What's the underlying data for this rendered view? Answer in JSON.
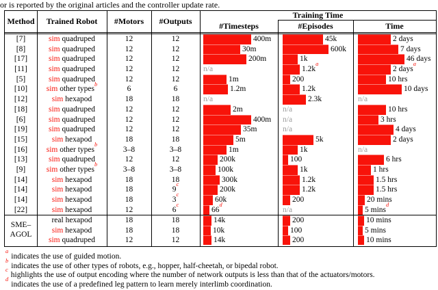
{
  "intro_text": "or is reported by the original articles and the controller update rate.",
  "colors": {
    "red": "#f8130a",
    "na_gray": "#9c9c9c",
    "bar_red": "#f8130a"
  },
  "header": {
    "method": "Method",
    "robot": "Trained Robot",
    "motors": "#Motors",
    "outputs": "#Outputs",
    "training_time": "Training Time",
    "timesteps": "#Timesteps",
    "episodes": "#Episodes",
    "time": "Time"
  },
  "group_label": {
    "line1": "SME–",
    "line2": "AGOL"
  },
  "na_label": "n/a",
  "rows": [
    {
      "method": "[7]",
      "robot_prefix": "sim",
      "prefix_red": true,
      "robot_rest": " quadruped",
      "robot_sup": null,
      "motors": "12",
      "outputs": "12",
      "outputs_sup": null,
      "timesteps": {
        "label": "400m",
        "sup": null,
        "bar": 70
      },
      "episodes": {
        "label": "45k",
        "sup": null,
        "bar": 59
      },
      "time": {
        "label": "2 days",
        "sup": null,
        "bar": 48
      },
      "group": "main"
    },
    {
      "method": "[8]",
      "robot_prefix": "sim",
      "prefix_red": true,
      "robot_rest": " quadruped",
      "robot_sup": null,
      "motors": "12",
      "outputs": "12",
      "outputs_sup": null,
      "timesteps": {
        "label": "30m",
        "sup": null,
        "bar": 54
      },
      "episodes": {
        "label": "600k",
        "sup": null,
        "bar": 67
      },
      "time": {
        "label": "7 days",
        "sup": null,
        "bar": 59
      },
      "group": "main"
    },
    {
      "method": "[17]",
      "robot_prefix": "sim",
      "prefix_red": true,
      "robot_rest": " quadruped",
      "robot_sup": null,
      "motors": "12",
      "outputs": "12",
      "outputs_sup": null,
      "timesteps": {
        "label": "200m",
        "sup": null,
        "bar": 63
      },
      "episodes": {
        "label": "1k",
        "sup": null,
        "bar": 22
      },
      "time": {
        "label": "46 days",
        "sup": null,
        "bar": 68
      },
      "group": "main"
    },
    {
      "method": "[11]",
      "robot_prefix": "sim",
      "prefix_red": true,
      "robot_rest": " quadruped",
      "robot_sup": null,
      "motors": "12",
      "outputs": "12",
      "outputs_sup": null,
      "timesteps": {
        "label": "n/a",
        "sup": null,
        "bar": 0
      },
      "episodes": {
        "label": "1.2k",
        "sup": "a",
        "bar": 25
      },
      "time": {
        "label": "2 days",
        "sup": "a",
        "bar": 48
      },
      "group": "main"
    },
    {
      "method": "[5]",
      "robot_prefix": "sim",
      "prefix_red": true,
      "robot_rest": " quadruped",
      "robot_sup": null,
      "motors": "12",
      "outputs": "12",
      "outputs_sup": null,
      "timesteps": {
        "label": "1m",
        "sup": null,
        "bar": 34
      },
      "episodes": {
        "label": "200",
        "sup": null,
        "bar": 11
      },
      "time": {
        "label": "10 hrs",
        "sup": null,
        "bar": 41
      },
      "group": "main"
    },
    {
      "method": "[10]",
      "robot_prefix": "sim",
      "prefix_red": true,
      "robot_rest": " other types",
      "robot_sup": "b",
      "motors": "6",
      "outputs": "6",
      "outputs_sup": null,
      "timesteps": {
        "label": "1.2m",
        "sup": null,
        "bar": 36
      },
      "episodes": {
        "label": "1.2k",
        "sup": null,
        "bar": 25
      },
      "time": {
        "label": "10 days",
        "sup": null,
        "bar": 64
      },
      "group": "main"
    },
    {
      "method": "[12]",
      "robot_prefix": "sim",
      "prefix_red": true,
      "robot_rest": " hexapod",
      "robot_sup": null,
      "motors": "18",
      "outputs": "18",
      "outputs_sup": null,
      "timesteps": {
        "label": "n/a",
        "sup": null,
        "bar": 0
      },
      "episodes": {
        "label": "2.3k",
        "sup": null,
        "bar": 34
      },
      "time": {
        "label": "n/a",
        "sup": null,
        "bar": 0
      },
      "group": "main"
    },
    {
      "method": "[18]",
      "robot_prefix": "sim",
      "prefix_red": true,
      "robot_rest": " quadruped",
      "robot_sup": null,
      "motors": "12",
      "outputs": "12",
      "outputs_sup": null,
      "timesteps": {
        "label": "2m",
        "sup": null,
        "bar": 40
      },
      "episodes": {
        "label": "n/a",
        "sup": null,
        "bar": 0
      },
      "time": {
        "label": "10 hrs",
        "sup": null,
        "bar": 41
      },
      "group": "main"
    },
    {
      "method": "[6]",
      "robot_prefix": "sim",
      "prefix_red": true,
      "robot_rest": " quadruped",
      "robot_sup": null,
      "motors": "12",
      "outputs": "12",
      "outputs_sup": null,
      "timesteps": {
        "label": "400m",
        "sup": null,
        "bar": 70
      },
      "episodes": {
        "label": "n/a",
        "sup": null,
        "bar": 0
      },
      "time": {
        "label": "3 hrs",
        "sup": null,
        "bar": 30
      },
      "group": "main"
    },
    {
      "method": "[19]",
      "robot_prefix": "sim",
      "prefix_red": true,
      "robot_rest": " quadruped",
      "robot_sup": null,
      "motors": "12",
      "outputs": "12",
      "outputs_sup": null,
      "timesteps": {
        "label": "35m",
        "sup": null,
        "bar": 55
      },
      "episodes": {
        "label": "n/a",
        "sup": null,
        "bar": 0
      },
      "time": {
        "label": "4 days",
        "sup": null,
        "bar": 52
      },
      "group": "main"
    },
    {
      "method": "[15]",
      "robot_prefix": "sim",
      "prefix_red": true,
      "robot_rest": " hexapod",
      "robot_sup": null,
      "motors": "18",
      "outputs": "18",
      "outputs_sup": null,
      "timesteps": {
        "label": "5m",
        "sup": null,
        "bar": 44
      },
      "episodes": {
        "label": "5k",
        "sup": null,
        "bar": 45
      },
      "time": {
        "label": "2 days",
        "sup": null,
        "bar": 48
      },
      "group": "main"
    },
    {
      "method": "[16]",
      "robot_prefix": "sim",
      "prefix_red": true,
      "robot_rest": " other types",
      "robot_sup": "b",
      "motors": "3–8",
      "outputs": "3–8",
      "outputs_sup": null,
      "timesteps": {
        "label": "1m",
        "sup": null,
        "bar": 34
      },
      "episodes": {
        "label": "1k",
        "sup": null,
        "bar": 22
      },
      "time": {
        "label": "n/a",
        "sup": null,
        "bar": 0
      },
      "group": "main"
    },
    {
      "method": "[13]",
      "robot_prefix": "sim",
      "prefix_red": true,
      "robot_rest": " quadruped",
      "robot_sup": null,
      "motors": "12",
      "outputs": "12",
      "outputs_sup": null,
      "timesteps": {
        "label": "200k",
        "sup": null,
        "bar": 21
      },
      "episodes": {
        "label": "100",
        "sup": null,
        "bar": 8
      },
      "time": {
        "label": "6 hrs",
        "sup": null,
        "bar": 38
      },
      "group": "main"
    },
    {
      "method": "[9]",
      "robot_prefix": "sim",
      "prefix_red": true,
      "robot_rest": " other types",
      "robot_sup": "b",
      "motors": "3–8",
      "outputs": "3–8",
      "outputs_sup": null,
      "timesteps": {
        "label": "100k",
        "sup": null,
        "bar": 18
      },
      "episodes": {
        "label": "1k",
        "sup": null,
        "bar": 22
      },
      "time": {
        "label": "1 hrs",
        "sup": null,
        "bar": 19
      },
      "group": "main"
    },
    {
      "method": "[14]",
      "robot_prefix": "sim",
      "prefix_red": true,
      "robot_rest": " hexapod",
      "robot_sup": null,
      "motors": "18",
      "outputs": "18",
      "outputs_sup": null,
      "timesteps": {
        "label": "300k",
        "sup": null,
        "bar": 24
      },
      "episodes": {
        "label": "1.2k",
        "sup": null,
        "bar": 25
      },
      "time": {
        "label": "1.5 hrs",
        "sup": null,
        "bar": 23
      },
      "group": "main"
    },
    {
      "method": "[14]",
      "robot_prefix": "sim",
      "prefix_red": true,
      "robot_rest": " hexapod",
      "robot_sup": null,
      "motors": "18",
      "outputs": "9",
      "outputs_sup": "c",
      "timesteps": {
        "label": "200k",
        "sup": null,
        "bar": 21
      },
      "episodes": {
        "label": "1.2k",
        "sup": null,
        "bar": 25
      },
      "time": {
        "label": "1.5 hrs",
        "sup": null,
        "bar": 23
      },
      "group": "main"
    },
    {
      "method": "[14]",
      "robot_prefix": "sim",
      "prefix_red": true,
      "robot_rest": " hexapod",
      "robot_sup": null,
      "motors": "18",
      "outputs": "3",
      "outputs_sup": "c",
      "timesteps": {
        "label": "60k",
        "sup": null,
        "bar": 14
      },
      "episodes": {
        "label": "200",
        "sup": null,
        "bar": 11
      },
      "time": {
        "label": "20 mins",
        "sup": null,
        "bar": 10
      },
      "group": "main"
    },
    {
      "method": "[22]",
      "robot_prefix": "sim",
      "prefix_red": true,
      "robot_rest": " hexapod",
      "robot_sup": null,
      "motors": "12",
      "outputs": "6",
      "outputs_sup": "c",
      "timesteps": {
        "label": "66",
        "sup": "d",
        "bar": 9
      },
      "episodes": {
        "label": "n/a",
        "sup": null,
        "bar": 0
      },
      "time": {
        "label": "5 mins",
        "sup": "d",
        "bar": 7
      },
      "group": "main"
    },
    {
      "method": "",
      "robot_prefix": "real",
      "prefix_red": false,
      "robot_rest": " hexapod",
      "robot_sup": null,
      "motors": "18",
      "outputs": "18",
      "outputs_sup": null,
      "timesteps": {
        "label": "14k",
        "sup": null,
        "bar": 12
      },
      "episodes": {
        "label": "200",
        "sup": null,
        "bar": 11
      },
      "time": {
        "label": "10 mins",
        "sup": null,
        "bar": 9
      },
      "group": "sme"
    },
    {
      "method": "",
      "robot_prefix": "sim",
      "prefix_red": true,
      "robot_rest": " hexapod",
      "robot_sup": null,
      "motors": "18",
      "outputs": "18",
      "outputs_sup": null,
      "timesteps": {
        "label": "10k",
        "sup": null,
        "bar": 11
      },
      "episodes": {
        "label": "100",
        "sup": null,
        "bar": 8
      },
      "time": {
        "label": "5 mins",
        "sup": null,
        "bar": 7
      },
      "group": "sme"
    },
    {
      "method": "",
      "robot_prefix": "sim",
      "prefix_red": true,
      "robot_rest": " quadruped",
      "robot_sup": null,
      "motors": "12",
      "outputs": "12",
      "outputs_sup": null,
      "timesteps": {
        "label": "14k",
        "sup": null,
        "bar": 12
      },
      "episodes": {
        "label": "200",
        "sup": null,
        "bar": 11
      },
      "time": {
        "label": "10 mins",
        "sup": null,
        "bar": 9
      },
      "group": "sme"
    }
  ],
  "footnotes": [
    {
      "marker": "a",
      "text": "indicates the use of guided motion."
    },
    {
      "marker": "b",
      "text": "indicates the use of other types of robots, e.g., hopper, half-cheetah, or bipedal robot."
    },
    {
      "marker": "c",
      "text": "highlights the use of output encoding where the number of network outputs is less than that of the actuators/motors."
    },
    {
      "marker": "d",
      "text": "indicates the use of a predefined leg pattern to learn merely interlimb coordination."
    }
  ]
}
